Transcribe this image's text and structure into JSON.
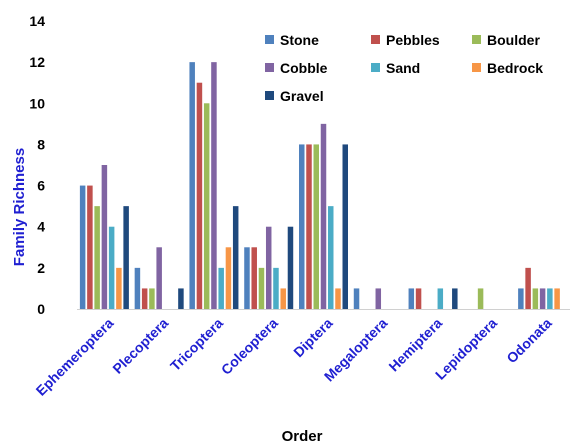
{
  "chart_data": {
    "type": "bar",
    "title": "",
    "xlabel": "Order",
    "ylabel": "Family Richness",
    "ylim": [
      0,
      14
    ],
    "yticks": [
      0,
      2,
      4,
      6,
      8,
      10,
      12,
      14
    ],
    "grid": false,
    "legend_position": "top-right",
    "categories": [
      "Ephemeroptera",
      "Plecoptera",
      "Tricoptera",
      "Coleoptera",
      "Diptera",
      "Megaloptera",
      "Hemiptera",
      "Lepidoptera",
      "Odonata"
    ],
    "series": [
      {
        "name": "Stone",
        "color": "#4f81bd",
        "values": [
          6,
          2,
          12,
          3,
          8,
          1,
          1,
          0,
          1
        ]
      },
      {
        "name": "Pebbles",
        "color": "#c0504d",
        "values": [
          6,
          1,
          11,
          3,
          8,
          0,
          1,
          0,
          2
        ]
      },
      {
        "name": "Boulder",
        "color": "#9bbb59",
        "values": [
          5,
          1,
          10,
          2,
          8,
          0,
          0,
          1,
          1
        ]
      },
      {
        "name": "Cobble",
        "color": "#8064a2",
        "values": [
          7,
          3,
          12,
          4,
          9,
          1,
          0,
          0,
          1
        ]
      },
      {
        "name": "Sand",
        "color": "#4bacc6",
        "values": [
          4,
          0,
          2,
          2,
          5,
          0,
          1,
          0,
          1
        ]
      },
      {
        "name": "Bedrock",
        "color": "#f79646",
        "values": [
          2,
          0,
          3,
          1,
          1,
          0,
          0,
          0,
          1
        ]
      },
      {
        "name": "Gravel",
        "color": "#1f497d",
        "values": [
          5,
          1,
          5,
          4,
          8,
          0,
          1,
          0,
          0
        ]
      }
    ]
  }
}
